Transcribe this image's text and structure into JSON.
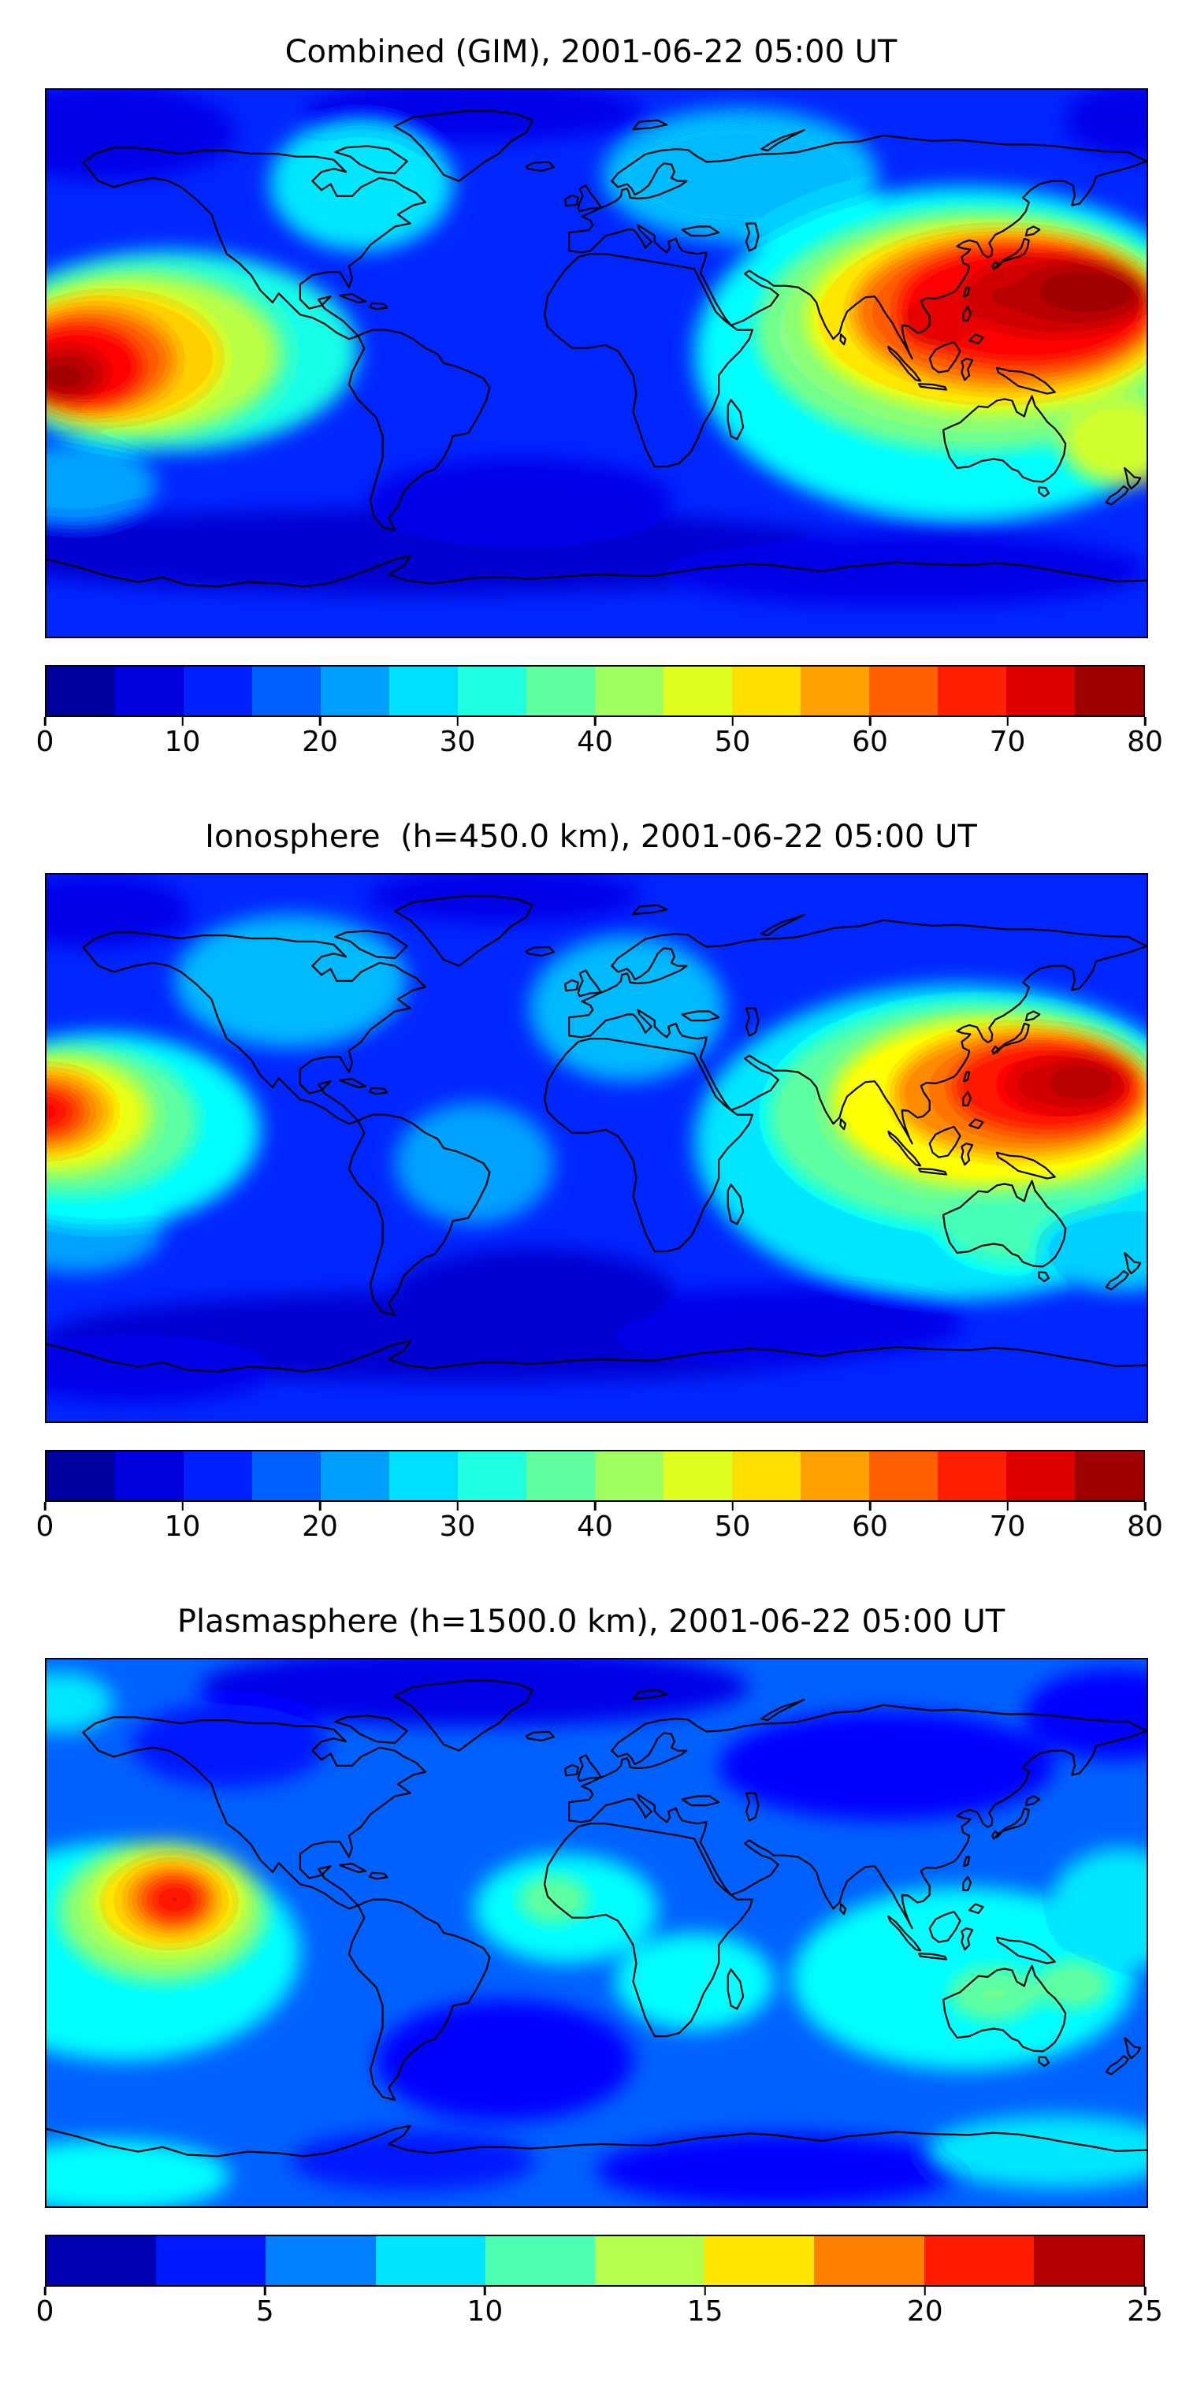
{
  "chart_data": [
    {
      "type": "heatmap",
      "title": "Combined (GIM), 2001-06-22 05:00 UT",
      "colormap": "jet",
      "projection": "equirectangular world map with black coastlines",
      "base_value": 13,
      "colorbar": {
        "min": 0,
        "max": 80,
        "ticks": [
          0,
          10,
          20,
          30,
          40,
          50,
          60,
          70,
          80
        ],
        "bands": 16
      },
      "field_blobs": [
        {
          "lon": -60,
          "lat": -62,
          "rx": 150,
          "ry": 14,
          "v": 6
        },
        {
          "lon": 100,
          "lat": -68,
          "rx": 80,
          "ry": 12,
          "v": 7
        },
        {
          "lon": -25,
          "lat": -45,
          "rx": 50,
          "ry": 14,
          "v": 8
        },
        {
          "lon": -160,
          "lat": 76,
          "rx": 42,
          "ry": 16,
          "v": 7
        },
        {
          "lon": -40,
          "lat": 83,
          "rx": 55,
          "ry": 10,
          "v": 8
        },
        {
          "lon": 175,
          "lat": 80,
          "rx": 22,
          "ry": 12,
          "v": 8
        },
        {
          "lon": -77,
          "lat": 59,
          "rx": 30,
          "ry": 22,
          "v": 27
        },
        {
          "lon": 47,
          "lat": 62,
          "rx": 45,
          "ry": 22,
          "v": 25
        },
        {
          "lon": -170,
          "lat": -40,
          "rx": 26,
          "ry": 14,
          "v": 22
        },
        {
          "lon": -140,
          "lat": 4,
          "rx": 62,
          "ry": 33,
          "v": 33
        },
        {
          "lon": -150,
          "lat": 3,
          "rx": 47,
          "ry": 27,
          "v": 44
        },
        {
          "lon": -158,
          "lat": 2,
          "rx": 36,
          "ry": 22,
          "v": 54
        },
        {
          "lon": -165,
          "lat": 1,
          "rx": 27,
          "ry": 17,
          "v": 62
        },
        {
          "lon": -170,
          "lat": -1,
          "rx": 21,
          "ry": 13,
          "v": 70
        },
        {
          "lon": -173,
          "lat": -3,
          "rx": 14,
          "ry": 9,
          "v": 75
        },
        {
          "lon": -175,
          "lat": -5,
          "rx": 9,
          "ry": 5.5,
          "v": 78
        },
        {
          "lon": 120,
          "lat": 3,
          "rx": 88,
          "ry": 55,
          "v": 30
        },
        {
          "lon": 124,
          "lat": 11,
          "rx": 72,
          "ry": 40,
          "v": 40
        },
        {
          "lon": 172,
          "lat": -26,
          "rx": 20,
          "ry": 14,
          "v": 46
        },
        {
          "lon": 129,
          "lat": 15,
          "rx": 60,
          "ry": 31,
          "v": 52
        },
        {
          "lon": 134,
          "lat": 17,
          "rx": 50,
          "ry": 25,
          "v": 62
        },
        {
          "lon": 140,
          "lat": 19,
          "rx": 41,
          "ry": 19,
          "v": 70
        },
        {
          "lon": 150,
          "lat": 22,
          "rx": 31,
          "ry": 13,
          "v": 75
        },
        {
          "lon": 161,
          "lat": 24,
          "rx": 18,
          "ry": 8,
          "v": 78
        },
        {
          "lon": 112,
          "lat": 14,
          "rx": 13,
          "ry": 9,
          "v": 73
        }
      ]
    },
    {
      "type": "heatmap",
      "title": "Ionosphere  (h=450.0 km), 2001-06-22 05:00 UT",
      "colormap": "jet",
      "projection": "equirectangular world map with black coastlines",
      "base_value": 13,
      "colorbar": {
        "min": 0,
        "max": 80,
        "ticks": [
          0,
          10,
          20,
          30,
          40,
          50,
          60,
          70,
          80
        ],
        "bands": 16
      },
      "field_blobs": [
        {
          "lon": -40,
          "lat": -62,
          "rx": 140,
          "ry": 15,
          "v": 6
        },
        {
          "lon": 60,
          "lat": -58,
          "rx": 60,
          "ry": 12,
          "v": 8
        },
        {
          "lon": -150,
          "lat": -72,
          "rx": 45,
          "ry": 12,
          "v": 7
        },
        {
          "lon": -20,
          "lat": -48,
          "rx": 46,
          "ry": 15,
          "v": 6
        },
        {
          "lon": -165,
          "lat": 78,
          "rx": 32,
          "ry": 12,
          "v": 8
        },
        {
          "lon": -30,
          "lat": 83,
          "rx": 45,
          "ry": 9,
          "v": 8
        },
        {
          "lon": -100,
          "lat": 55,
          "rx": 38,
          "ry": 22,
          "v": 24
        },
        {
          "lon": 10,
          "lat": 46,
          "rx": 32,
          "ry": 24,
          "v": 24
        },
        {
          "lon": -40,
          "lat": -5,
          "rx": 26,
          "ry": 20,
          "v": 22
        },
        {
          "lon": -170,
          "lat": -27,
          "rx": 28,
          "ry": 14,
          "v": 22
        },
        {
          "lon": -162,
          "lat": 6,
          "rx": 52,
          "ry": 32,
          "v": 30
        },
        {
          "lon": -170,
          "lat": 9,
          "rx": 40,
          "ry": 25,
          "v": 38
        },
        {
          "lon": -176,
          "lat": 11,
          "rx": 30,
          "ry": 19,
          "v": 48
        },
        {
          "lon": -180,
          "lat": 12,
          "rx": 22,
          "ry": 14,
          "v": 58
        },
        {
          "lon": -182,
          "lat": 12,
          "rx": 15,
          "ry": 9,
          "v": 66
        },
        {
          "lon": -183,
          "lat": 12,
          "rx": 9,
          "ry": 5,
          "v": 72
        },
        {
          "lon": 118,
          "lat": 2,
          "rx": 86,
          "ry": 52,
          "v": 28
        },
        {
          "lon": 124,
          "lat": 11,
          "rx": 68,
          "ry": 37,
          "v": 38
        },
        {
          "lon": 138,
          "lat": -25,
          "rx": 26,
          "ry": 14,
          "v": 36
        },
        {
          "lon": 172,
          "lat": -33,
          "rx": 28,
          "ry": 14,
          "v": 26
        },
        {
          "lon": 131,
          "lat": 15,
          "rx": 54,
          "ry": 28,
          "v": 50
        },
        {
          "lon": 139,
          "lat": 18,
          "rx": 42,
          "ry": 21,
          "v": 60
        },
        {
          "lon": 147,
          "lat": 20,
          "rx": 31,
          "ry": 15,
          "v": 68
        },
        {
          "lon": 154,
          "lat": 21,
          "rx": 21,
          "ry": 10,
          "v": 74
        },
        {
          "lon": 159,
          "lat": 22,
          "rx": 11,
          "ry": 5.5,
          "v": 77
        }
      ]
    },
    {
      "type": "heatmap",
      "title": "Plasmasphere (h=1500.0 km), 2001-06-22 05:00 UT",
      "colormap": "jet",
      "projection": "equirectangular world map with black coastlines",
      "base_value": 5.5,
      "colorbar": {
        "min": 0,
        "max": 25,
        "ticks": [
          0,
          5,
          10,
          15,
          20,
          25
        ],
        "bands": 10
      },
      "field_blobs": [
        {
          "lon": -40,
          "lat": 81,
          "rx": 90,
          "ry": 13,
          "v": 2.5
        },
        {
          "lon": 95,
          "lat": 55,
          "rx": 55,
          "ry": 18,
          "v": 3
        },
        {
          "lon": 170,
          "lat": 72,
          "rx": 30,
          "ry": 15,
          "v": 3
        },
        {
          "lon": -120,
          "lat": 62,
          "rx": 32,
          "ry": 14,
          "v": 4
        },
        {
          "lon": -30,
          "lat": -42,
          "rx": 42,
          "ry": 20,
          "v": 3
        },
        {
          "lon": 60,
          "lat": -78,
          "rx": 60,
          "ry": 12,
          "v": 3.5
        },
        {
          "lon": -60,
          "lat": -75,
          "rx": 40,
          "ry": 10,
          "v": 4
        },
        {
          "lon": -155,
          "lat": -6,
          "rx": 58,
          "ry": 36,
          "v": 9.5
        },
        {
          "lon": -160,
          "lat": -80,
          "rx": 40,
          "ry": 12,
          "v": 9
        },
        {
          "lon": -176,
          "lat": 76,
          "rx": 18,
          "ry": 10,
          "v": 8.5
        },
        {
          "lon": -10,
          "lat": 8,
          "rx": 30,
          "ry": 18,
          "v": 9
        },
        {
          "lon": -14,
          "lat": 11,
          "rx": 12,
          "ry": 8,
          "v": 12
        },
        {
          "lon": 32,
          "lat": -16,
          "rx": 26,
          "ry": 16,
          "v": 9
        },
        {
          "lon": 120,
          "lat": -15,
          "rx": 56,
          "ry": 30,
          "v": 9
        },
        {
          "lon": 172,
          "lat": 8,
          "rx": 24,
          "ry": 20,
          "v": 8.5
        },
        {
          "lon": 150,
          "lat": -72,
          "rx": 42,
          "ry": 12,
          "v": 8.5
        },
        {
          "lon": 130,
          "lat": -20,
          "rx": 15,
          "ry": 9,
          "v": 12
        },
        {
          "lon": 156,
          "lat": -17,
          "rx": 12,
          "ry": 8,
          "v": 12
        },
        {
          "lon": -142,
          "lat": 7,
          "rx": 34,
          "ry": 23,
          "v": 13
        },
        {
          "lon": -140,
          "lat": 10,
          "rx": 24,
          "ry": 16,
          "v": 16.5
        },
        {
          "lon": -139,
          "lat": 11,
          "rx": 15,
          "ry": 11,
          "v": 19
        },
        {
          "lon": -138,
          "lat": 11,
          "rx": 9,
          "ry": 6.5,
          "v": 21.5
        }
      ]
    }
  ]
}
